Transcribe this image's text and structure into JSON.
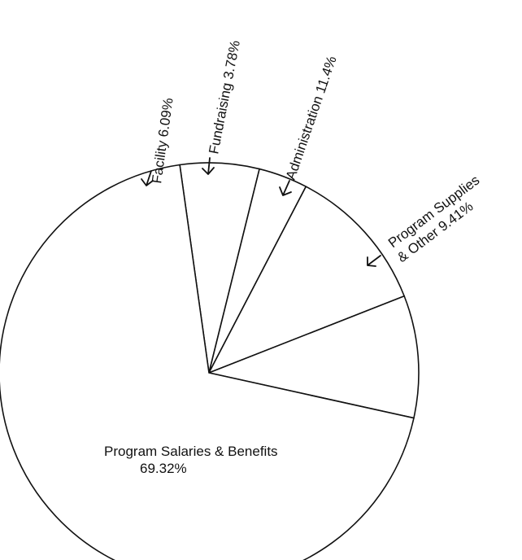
{
  "chart_data": {
    "type": "pie",
    "title": "",
    "start_angle_deg": -98,
    "direction": "clockwise",
    "slices": [
      {
        "label": "Facility",
        "value": 6.09,
        "text": "Facility 6.09%"
      },
      {
        "label": "Fundraising",
        "value": 3.78,
        "text": "Fundraising 3.78%"
      },
      {
        "label": "Administration",
        "value": 11.4,
        "text": "Administration 11.4%"
      },
      {
        "label": "Program Supplies & Other",
        "value": 9.41,
        "text_line1": "Program Supplies",
        "text_line2": "& Other 9.41%"
      },
      {
        "label": "Program Salaries & Benefits",
        "value": 69.32,
        "text_line1": "Program Salaries & Benefits",
        "text_line2": "69.32%"
      }
    ],
    "colors": {
      "stroke": "#111111",
      "fill": "#ffffff"
    }
  }
}
